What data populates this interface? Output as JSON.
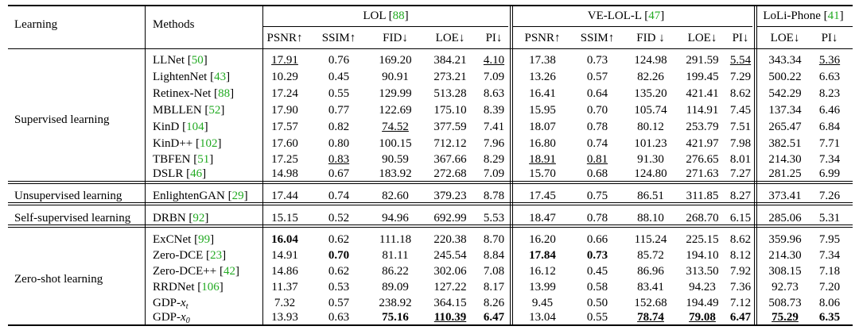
{
  "header": {
    "learning": "Learning",
    "methods": "Methods",
    "datasets": [
      {
        "name": "LOL [",
        "ref": "88",
        "close": "]"
      },
      {
        "name": "VE-LOL-L [",
        "ref": "47",
        "close": "]"
      },
      {
        "name": "LoLi-Phone [",
        "ref": "41",
        "close": "]"
      }
    ],
    "metrics": [
      "PSNR↑",
      "SSIM↑",
      "FID↓",
      "LOE↓",
      "PI↓",
      "PSNR↑",
      "SSIM↑",
      "FID ↓",
      "LOE↓",
      "PI↓",
      "LOE↓",
      "PI↓"
    ]
  },
  "groups": [
    {
      "name": "Supervised learning"
    },
    {
      "name": "Unsupervised learning"
    },
    {
      "name": "Self-supervised learning"
    },
    {
      "name": "Zero-shot learning"
    }
  ],
  "rows": [
    {
      "method": "LLNet [",
      "ref": "50",
      "vals": [
        "17.91",
        "0.76",
        "169.20",
        "384.21",
        "4.10",
        "17.38",
        "0.73",
        "124.98",
        "291.59",
        "5.54",
        "343.34",
        "5.36"
      ]
    },
    {
      "method": "LightenNet [",
      "ref": "43",
      "vals": [
        "10.29",
        "0.45",
        "90.91",
        "273.21",
        "7.09",
        "13.26",
        "0.57",
        "82.26",
        "199.45",
        "7.29",
        "500.22",
        "6.63"
      ]
    },
    {
      "method": "Retinex-Net [",
      "ref": "88",
      "vals": [
        "17.24",
        "0.55",
        "129.99",
        "513.28",
        "8.63",
        "16.41",
        "0.64",
        "135.20",
        "421.41",
        "8.62",
        "542.29",
        "8.23"
      ]
    },
    {
      "method": "MBLLEN [",
      "ref": "52",
      "vals": [
        "17.90",
        "0.77",
        "122.69",
        "175.10",
        "8.39",
        "15.95",
        "0.70",
        "105.74",
        "114.91",
        "7.45",
        "137.34",
        "6.46"
      ]
    },
    {
      "method": "KinD [",
      "ref": "104",
      "vals": [
        "17.57",
        "0.82",
        "74.52",
        "377.59",
        "7.41",
        "18.07",
        "0.78",
        "80.12",
        "253.79",
        "7.51",
        "265.47",
        "6.84"
      ]
    },
    {
      "method": "KinD++ [",
      "ref": "102",
      "vals": [
        "17.60",
        "0.80",
        "100.15",
        "712.12",
        "7.96",
        "16.80",
        "0.74",
        "101.23",
        "421.97",
        "7.98",
        "382.51",
        "7.71"
      ]
    },
    {
      "method": "TBFEN [",
      "ref": "51",
      "vals": [
        "17.25",
        "0.83",
        "90.59",
        "367.66",
        "8.29",
        "18.91",
        "0.81",
        "91.30",
        "276.65",
        "8.01",
        "214.30",
        "7.34"
      ]
    },
    {
      "method": "DSLR [",
      "ref": "46",
      "vals": [
        "14.98",
        "0.67",
        "183.92",
        "272.68",
        "7.09",
        "15.70",
        "0.68",
        "124.80",
        "271.63",
        "7.27",
        "281.25",
        "6.99"
      ]
    },
    {
      "method": "EnlightenGAN [",
      "ref": "29",
      "vals": [
        "17.44",
        "0.74",
        "82.60",
        "379.23",
        "8.78",
        "17.45",
        "0.75",
        "86.51",
        "311.85",
        "8.27",
        "373.41",
        "7.26"
      ]
    },
    {
      "method": "DRBN [",
      "ref": "92",
      "vals": [
        "15.15",
        "0.52",
        "94.96",
        "692.99",
        "5.53",
        "18.47",
        "0.78",
        "88.10",
        "268.70",
        "6.15",
        "285.06",
        "5.31"
      ]
    },
    {
      "method": "ExCNet [",
      "ref": "99",
      "vals": [
        "16.04",
        "0.62",
        "111.18",
        "220.38",
        "8.70",
        "16.20",
        "0.66",
        "115.24",
        "225.15",
        "8.62",
        "359.96",
        "7.95"
      ]
    },
    {
      "method": "Zero-DCE [",
      "ref": "23",
      "vals": [
        "14.91",
        "0.70",
        "81.11",
        "245.54",
        "8.84",
        "17.84",
        "0.73",
        "85.72",
        "194.10",
        "8.12",
        "214.30",
        "7.34"
      ]
    },
    {
      "method": "Zero-DCE++ [",
      "ref": "42",
      "vals": [
        "14.86",
        "0.62",
        "86.22",
        "302.06",
        "7.08",
        "16.12",
        "0.45",
        "86.96",
        "313.50",
        "7.92",
        "308.15",
        "7.18"
      ]
    },
    {
      "method": "RRDNet [",
      "ref": "106",
      "vals": [
        "11.37",
        "0.53",
        "89.09",
        "127.22",
        "8.17",
        "13.99",
        "0.58",
        "83.41",
        "94.23",
        "7.36",
        "92.73",
        "7.20"
      ]
    },
    {
      "method": "GDP-",
      "sub": "t",
      "vals": [
        "7.32",
        "0.57",
        "238.92",
        "364.15",
        "8.26",
        "9.45",
        "0.50",
        "152.68",
        "194.49",
        "7.12",
        "508.73",
        "8.06"
      ]
    },
    {
      "method": "GDP-",
      "sub": "0",
      "vals": [
        "13.93",
        "0.63",
        "75.16",
        "110.39",
        "6.47",
        "13.04",
        "0.55",
        "78.74",
        "79.08",
        "6.47",
        "75.29",
        "6.35"
      ]
    }
  ],
  "styles": {
    "0": {
      "0": "u",
      "4": "u",
      "9": "u",
      "11": "u"
    },
    "4": {
      "2": "u"
    },
    "6": {
      "1": "u",
      "5": "u",
      "6": "u"
    },
    "10": {
      "0": "b"
    },
    "11": {
      "1": "b",
      "5": "b",
      "6": "b"
    },
    "15": {
      "2": "b",
      "3": "bu",
      "4": "b",
      "7": "bu",
      "8": "bu",
      "9": "b",
      "10": "bu",
      "11": "b"
    }
  },
  "colors": {
    "ref": "#22aa22"
  }
}
